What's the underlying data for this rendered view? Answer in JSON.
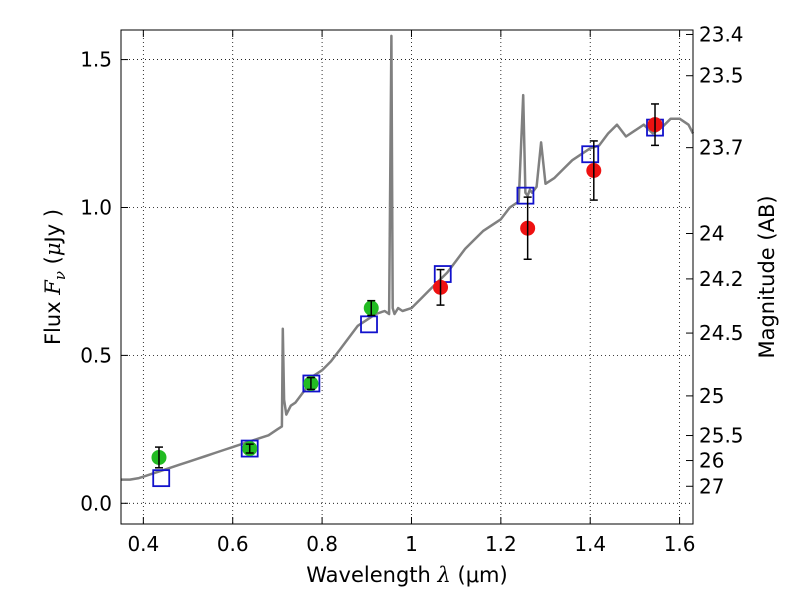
{
  "chart_data": {
    "type": "scatter",
    "xlabel": "Wavelength  λ (μm)",
    "ylabel": "Flux  F_ν  ( μJy )",
    "ylabel_parts": {
      "prefix": "Flux  ",
      "var": "F",
      "sub": "ν",
      "paren_open": "  (",
      "unit_mu": "μ",
      "unit": "Jy",
      "paren_close": " )"
    },
    "xlabel_parts": {
      "prefix": "Wavelength  ",
      "var": "λ",
      "rest": " (μm)"
    },
    "y2label": "Magnitude (AB)",
    "xlim": [
      0.35,
      1.63
    ],
    "ylim": [
      -0.07,
      1.6
    ],
    "x_ticks": [
      0.4,
      0.6,
      0.8,
      1.0,
      1.2,
      1.4,
      1.6
    ],
    "x_tick_labels": [
      "0.4",
      "0.6",
      "0.8",
      "1",
      "1.2",
      "1.4",
      "1.6"
    ],
    "y_ticks": [
      0.0,
      0.5,
      1.0,
      1.5
    ],
    "y_tick_labels": [
      "0.0",
      "0.5",
      "1.0",
      "1.5"
    ],
    "mag_ticks": [
      23.4,
      23.5,
      23.7,
      24,
      24.2,
      24.5,
      25,
      25.5,
      26,
      27
    ],
    "mag_tick_labels": [
      "23.4",
      "23.5",
      "23.7",
      "24",
      "24.2",
      "24.5",
      "25",
      "25.5",
      "26",
      "27"
    ],
    "grid": true,
    "colors": {
      "model": "#808080",
      "optical": "#22bb22",
      "nir": "#ee1111",
      "synthetic": "#1111cc",
      "errorbar": "#000000"
    },
    "model_spectrum": {
      "x": [
        0.35,
        0.37,
        0.39,
        0.4,
        0.42,
        0.44,
        0.46,
        0.48,
        0.5,
        0.52,
        0.54,
        0.56,
        0.58,
        0.6,
        0.62,
        0.64,
        0.66,
        0.68,
        0.7,
        0.71,
        0.712,
        0.715,
        0.72,
        0.73,
        0.74,
        0.75,
        0.76,
        0.77,
        0.78,
        0.8,
        0.82,
        0.84,
        0.86,
        0.88,
        0.9,
        0.92,
        0.94,
        0.95,
        0.955,
        0.958,
        0.962,
        0.97,
        0.98,
        1.0,
        1.02,
        1.04,
        1.06,
        1.08,
        1.1,
        1.12,
        1.14,
        1.16,
        1.18,
        1.2,
        1.22,
        1.24,
        1.25,
        1.255,
        1.26,
        1.265,
        1.27,
        1.28,
        1.29,
        1.3,
        1.32,
        1.34,
        1.36,
        1.38,
        1.4,
        1.42,
        1.44,
        1.46,
        1.48,
        1.5,
        1.52,
        1.54,
        1.56,
        1.58,
        1.6,
        1.62,
        1.63
      ],
      "y": [
        0.08,
        0.08,
        0.085,
        0.09,
        0.1,
        0.11,
        0.12,
        0.13,
        0.14,
        0.15,
        0.16,
        0.17,
        0.18,
        0.19,
        0.2,
        0.21,
        0.22,
        0.23,
        0.25,
        0.26,
        0.59,
        0.35,
        0.3,
        0.33,
        0.34,
        0.36,
        0.38,
        0.4,
        0.43,
        0.45,
        0.48,
        0.52,
        0.56,
        0.6,
        0.62,
        0.64,
        0.65,
        0.64,
        1.58,
        0.66,
        0.64,
        0.66,
        0.65,
        0.66,
        0.69,
        0.72,
        0.75,
        0.78,
        0.82,
        0.86,
        0.89,
        0.92,
        0.94,
        0.96,
        1.0,
        1.02,
        1.38,
        1.05,
        1.04,
        1.06,
        1.05,
        1.07,
        1.22,
        1.08,
        1.1,
        1.13,
        1.16,
        1.18,
        1.2,
        1.21,
        1.25,
        1.28,
        1.24,
        1.26,
        1.28,
        1.25,
        1.27,
        1.3,
        1.3,
        1.28,
        1.25
      ]
    },
    "optical_points": [
      {
        "x": 0.435,
        "y": 0.155,
        "err": 0.035
      },
      {
        "x": 0.638,
        "y": 0.185,
        "err": 0.015
      },
      {
        "x": 0.775,
        "y": 0.405,
        "err": 0.02
      },
      {
        "x": 0.91,
        "y": 0.66,
        "err": 0.025
      }
    ],
    "nir_points": [
      {
        "x": 1.065,
        "y": 0.73,
        "err": 0.06
      },
      {
        "x": 1.26,
        "y": 0.93,
        "err": 0.105
      },
      {
        "x": 1.408,
        "y": 1.125,
        "err": 0.1
      },
      {
        "x": 1.545,
        "y": 1.28,
        "err": 0.07
      }
    ],
    "synthetic_points": [
      {
        "x": 0.44,
        "y": 0.085
      },
      {
        "x": 0.638,
        "y": 0.185
      },
      {
        "x": 0.776,
        "y": 0.405
      },
      {
        "x": 0.905,
        "y": 0.605
      },
      {
        "x": 1.07,
        "y": 0.775
      },
      {
        "x": 1.255,
        "y": 1.04
      },
      {
        "x": 1.4,
        "y": 1.18
      },
      {
        "x": 1.545,
        "y": 1.27
      }
    ]
  }
}
